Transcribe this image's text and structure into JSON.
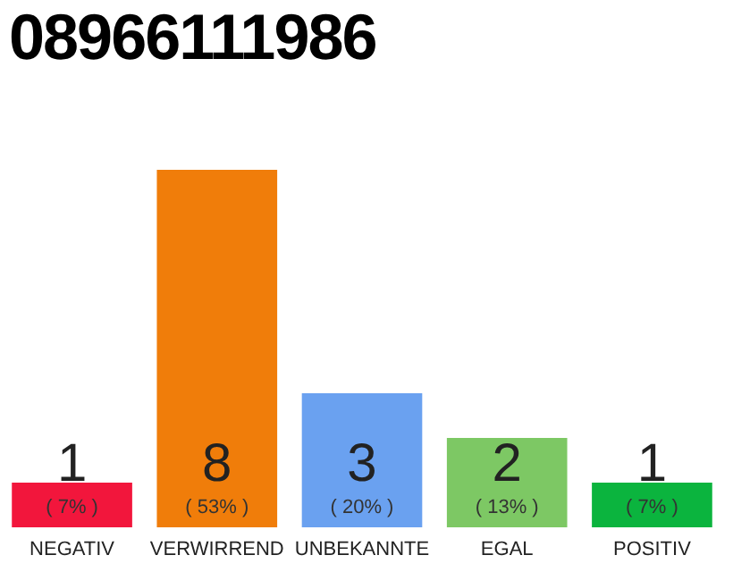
{
  "chart_data": {
    "type": "bar",
    "title": "08966111986",
    "categories": [
      "NEGATIV",
      "VERWIRREND",
      "UNBEKANNTE",
      "EGAL",
      "POSITIV"
    ],
    "values": [
      1,
      8,
      3,
      2,
      1
    ],
    "colors": [
      "#f2163c",
      "#f07d0a",
      "#6aa1f0",
      "#7dc864",
      "#0bb43e"
    ],
    "ylim": [
      0,
      8
    ],
    "data_labels": true,
    "annotations": [
      "( 7% )",
      "( 53% )",
      "( 20% )",
      "( 13% )",
      "( 7% )"
    ]
  }
}
